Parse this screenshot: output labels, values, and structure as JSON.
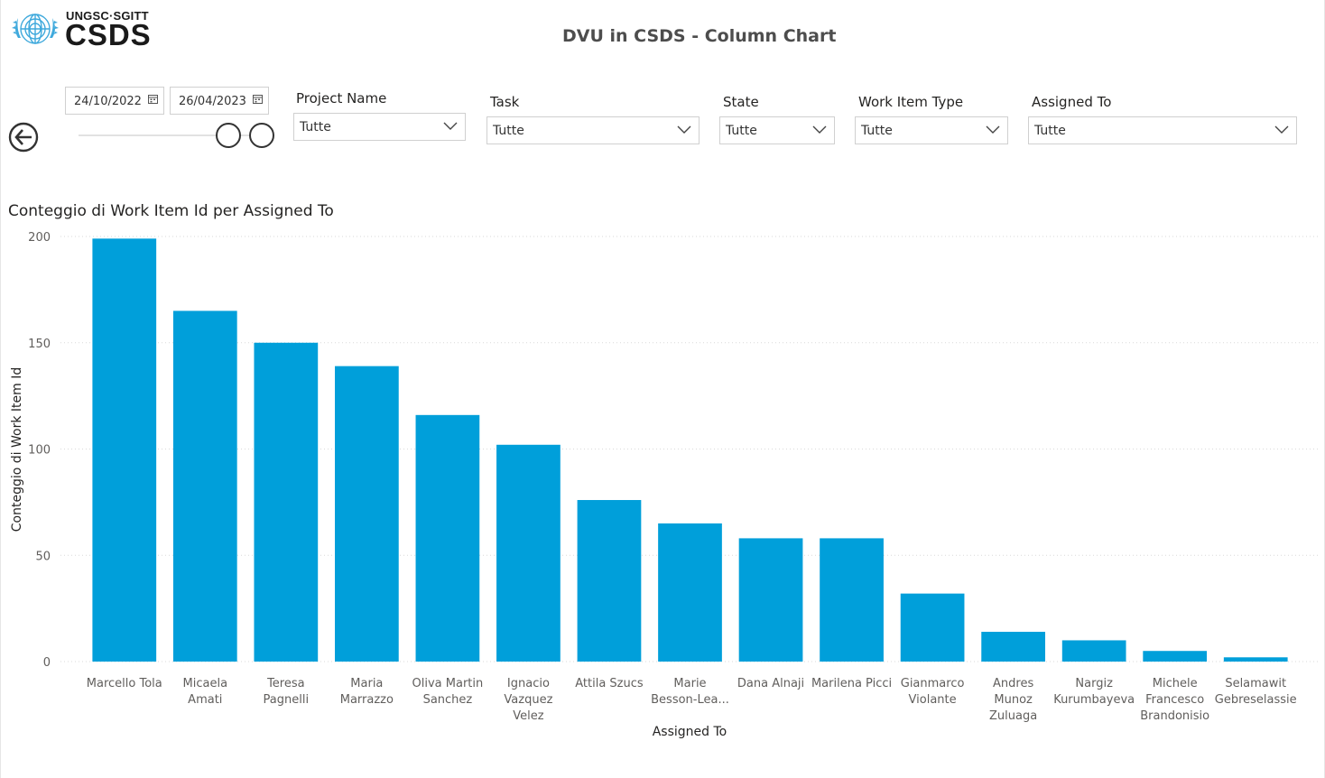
{
  "header": {
    "logo_top": "UNGSC·SGITT",
    "logo_main": "CSDS",
    "page_title": "DVU in CSDS - Column Chart"
  },
  "filters": {
    "date_start": "24/10/2022",
    "date_end": "26/04/2023",
    "slicers": [
      {
        "title": "Project Name",
        "value": "Tutte"
      },
      {
        "title": "Task",
        "value": "Tutte"
      },
      {
        "title": "State",
        "value": "Tutte"
      },
      {
        "title": "Work Item Type",
        "value": "Tutte"
      },
      {
        "title": "Assigned To",
        "value": "Tutte"
      }
    ]
  },
  "colors": {
    "bar": "#009FDA",
    "grid": "#d9d9d9",
    "axis_text": "#605E5C"
  },
  "chart_data": {
    "type": "bar",
    "title": "Conteggio di Work Item Id per Assigned To",
    "xlabel": "Assigned To",
    "ylabel": "Conteggio di Work Item Id",
    "ylim": [
      0,
      200
    ],
    "yticks": [
      0,
      50,
      100,
      150,
      200
    ],
    "grid": true,
    "categories": [
      [
        "Marcello Tola"
      ],
      [
        "Micaela",
        "Amati"
      ],
      [
        "Teresa",
        "Pagnelli"
      ],
      [
        "Maria",
        "Marrazzo"
      ],
      [
        "Oliva Martin",
        "Sanchez"
      ],
      [
        "Ignacio",
        "Vazquez",
        "Velez"
      ],
      [
        "Attila Szucs"
      ],
      [
        "Marie",
        "Besson-Lea..."
      ],
      [
        "Dana Alnaji"
      ],
      [
        "Marilena Picci"
      ],
      [
        "Gianmarco",
        "Violante"
      ],
      [
        "Andres",
        "Munoz",
        "Zuluaga"
      ],
      [
        "Nargiz",
        "Kurumbayeva"
      ],
      [
        "Michele",
        "Francesco",
        "Brandonisio"
      ],
      [
        "Selamawit",
        "Gebreselassie"
      ]
    ],
    "values": [
      199,
      165,
      150,
      139,
      116,
      102,
      76,
      65,
      58,
      58,
      32,
      14,
      10,
      5,
      2
    ]
  }
}
